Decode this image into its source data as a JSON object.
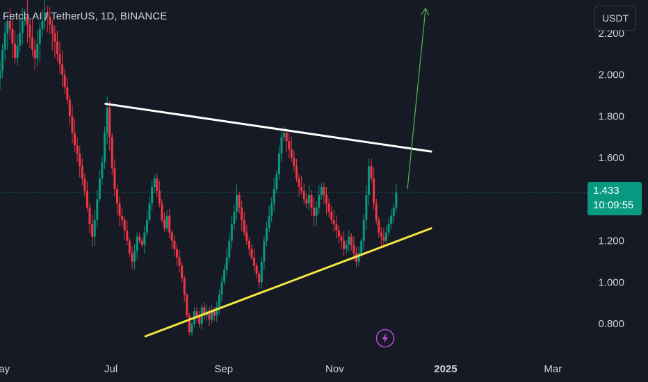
{
  "header": {
    "title": "Fetch.AI / TetherUS, 1D, BINANCE",
    "currency_button": "USDT"
  },
  "price_badge": {
    "price": "1.433",
    "countdown": "10:09:55"
  },
  "colors": {
    "background": "#161a25",
    "up_candle": "#089981",
    "down_candle": "#f23645",
    "resistance_line": "#ffffff",
    "support_line": "#f5e642",
    "projection_arrow": "#4caf50",
    "price_line": "#089981",
    "axis_text": "#d1d4dc"
  },
  "chart_data": {
    "type": "candlestick",
    "symbol": "Fetch.AI / TetherUS",
    "interval": "1D",
    "exchange": "BINANCE",
    "y_axis": {
      "tick_labels": [
        "2.200",
        "2.000",
        "1.800",
        "1.600",
        "1.200",
        "1.000",
        "0.800"
      ],
      "range": [
        0.62,
        2.36
      ],
      "side": "right"
    },
    "x_axis": {
      "tick_labels": [
        "May",
        "Jul",
        "Sep",
        "Nov",
        "2025",
        "Mar"
      ],
      "bold_labels": [
        "2025"
      ],
      "range": [
        "2024-05-01",
        "2025-03-20"
      ]
    },
    "last_price": 1.433,
    "approx_close_series": {
      "start": "2024-05-01",
      "closes": [
        2.02,
        2.12,
        2.2,
        2.26,
        2.22,
        2.15,
        2.08,
        2.14,
        2.2,
        2.26,
        2.28,
        2.24,
        2.18,
        2.12,
        2.08,
        2.15,
        2.22,
        2.26,
        2.3,
        2.28,
        2.24,
        2.2,
        2.16,
        2.1,
        2.05,
        2.0,
        1.94,
        1.88,
        1.8,
        1.72,
        1.66,
        1.62,
        1.56,
        1.5,
        1.44,
        1.36,
        1.28,
        1.22,
        1.3,
        1.4,
        1.5,
        1.58,
        1.72,
        1.84,
        1.7,
        1.55,
        1.45,
        1.38,
        1.32,
        1.3,
        1.25,
        1.2,
        1.14,
        1.1,
        1.15,
        1.22,
        1.2,
        1.18,
        1.24,
        1.3,
        1.38,
        1.46,
        1.5,
        1.44,
        1.38,
        1.3,
        1.26,
        1.32,
        1.24,
        1.2,
        1.16,
        1.12,
        1.08,
        1.02,
        0.94,
        0.84,
        0.76,
        0.8,
        0.86,
        0.84,
        0.8,
        0.88,
        0.84,
        0.86,
        0.82,
        0.86,
        0.84,
        0.88,
        0.94,
        1.0,
        1.06,
        1.12,
        1.2,
        1.28,
        1.34,
        1.42,
        1.36,
        1.3,
        1.24,
        1.2,
        1.16,
        1.12,
        1.08,
        1.04,
        1.0,
        1.1,
        1.2,
        1.26,
        1.32,
        1.38,
        1.45,
        1.52,
        1.62,
        1.7,
        1.72,
        1.68,
        1.64,
        1.6,
        1.56,
        1.5,
        1.46,
        1.44,
        1.4,
        1.38,
        1.42,
        1.36,
        1.32,
        1.36,
        1.42,
        1.46,
        1.42,
        1.38,
        1.34,
        1.3,
        1.28,
        1.25,
        1.22,
        1.2,
        1.16,
        1.18,
        1.22,
        1.18,
        1.14,
        1.1,
        1.14,
        1.2,
        1.3,
        1.42,
        1.56,
        1.5,
        1.38,
        1.3,
        1.24,
        1.22,
        1.2,
        1.24,
        1.28,
        1.32,
        1.36,
        1.433
      ]
    },
    "trendlines": [
      {
        "name": "resistance",
        "from": {
          "date": "2024-06-28",
          "price": 1.86
        },
        "to": {
          "date": "2024-12-24",
          "price": 1.63
        }
      },
      {
        "name": "support",
        "from": {
          "date": "2024-07-20",
          "price": 0.74
        },
        "to": {
          "date": "2024-12-24",
          "price": 1.26
        }
      }
    ],
    "projection_arrow": {
      "from": {
        "date": "2024-12-11",
        "price": 1.45
      },
      "to": {
        "date": "2024-12-21",
        "price": 2.32
      }
    },
    "grid": false,
    "legend": "none"
  }
}
